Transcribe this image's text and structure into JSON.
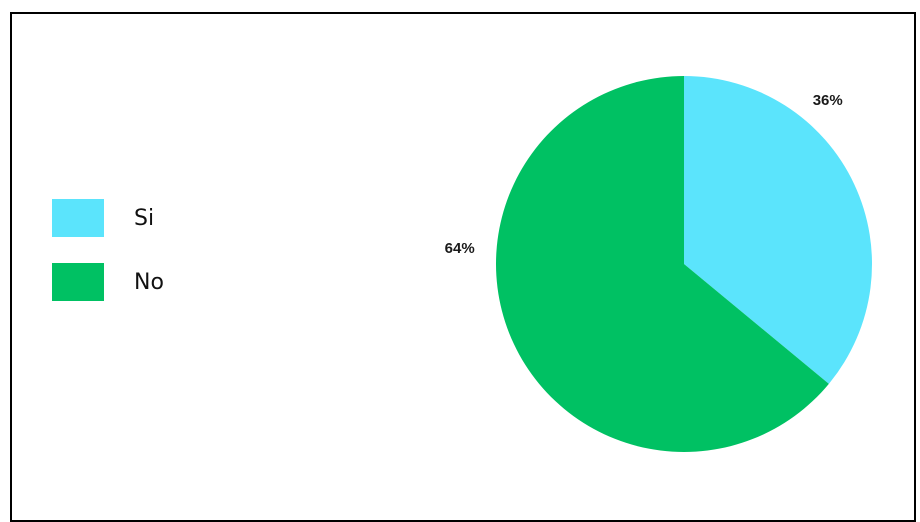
{
  "chart_data": {
    "type": "pie",
    "title": "",
    "slices": [
      {
        "label": "Si",
        "value": 36,
        "display": "36%",
        "color": "#5be4fc"
      },
      {
        "label": "No",
        "value": 64,
        "display": "64%",
        "color": "#00c163"
      }
    ],
    "legend_position": "left"
  }
}
